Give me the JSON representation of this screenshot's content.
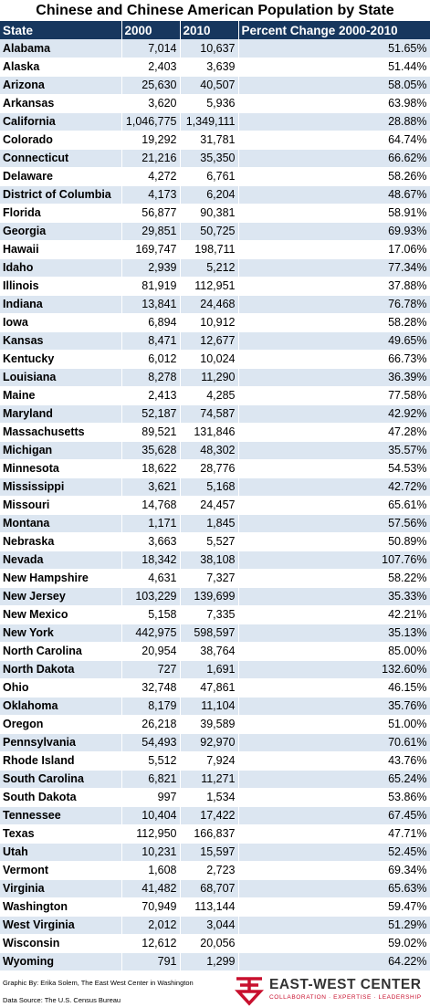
{
  "header": {
    "title": "Chinese and Chinese American Population by State"
  },
  "table": {
    "columns": [
      "State",
      "2000",
      "2010",
      "Percent Change 2000-2010"
    ],
    "rows": [
      [
        "Alabama",
        "7,014",
        "10,637",
        "51.65%"
      ],
      [
        "Alaska",
        "2,403",
        "3,639",
        "51.44%"
      ],
      [
        "Arizona",
        "25,630",
        "40,507",
        "58.05%"
      ],
      [
        "Arkansas",
        "3,620",
        "5,936",
        "63.98%"
      ],
      [
        "California",
        "1,046,775",
        "1,349,111",
        "28.88%"
      ],
      [
        "Colorado",
        "19,292",
        "31,781",
        "64.74%"
      ],
      [
        "Connecticut",
        "21,216",
        "35,350",
        "66.62%"
      ],
      [
        "Delaware",
        "4,272",
        "6,761",
        "58.26%"
      ],
      [
        "District of Columbia",
        "4,173",
        "6,204",
        "48.67%"
      ],
      [
        "Florida",
        "56,877",
        "90,381",
        "58.91%"
      ],
      [
        "Georgia",
        "29,851",
        "50,725",
        "69.93%"
      ],
      [
        "Hawaii",
        "169,747",
        "198,711",
        "17.06%"
      ],
      [
        "Idaho",
        "2,939",
        "5,212",
        "77.34%"
      ],
      [
        "Illinois",
        "81,919",
        "112,951",
        "37.88%"
      ],
      [
        "Indiana",
        "13,841",
        "24,468",
        "76.78%"
      ],
      [
        "Iowa",
        "6,894",
        "10,912",
        "58.28%"
      ],
      [
        "Kansas",
        "8,471",
        "12,677",
        "49.65%"
      ],
      [
        "Kentucky",
        "6,012",
        "10,024",
        "66.73%"
      ],
      [
        "Louisiana",
        "8,278",
        "11,290",
        "36.39%"
      ],
      [
        "Maine",
        "2,413",
        "4,285",
        "77.58%"
      ],
      [
        "Maryland",
        "52,187",
        "74,587",
        "42.92%"
      ],
      [
        "Massachusetts",
        "89,521",
        "131,846",
        "47.28%"
      ],
      [
        "Michigan",
        "35,628",
        "48,302",
        "35.57%"
      ],
      [
        "Minnesota",
        "18,622",
        "28,776",
        "54.53%"
      ],
      [
        "Mississippi",
        "3,621",
        "5,168",
        "42.72%"
      ],
      [
        "Missouri",
        "14,768",
        "24,457",
        "65.61%"
      ],
      [
        "Montana",
        "1,171",
        "1,845",
        "57.56%"
      ],
      [
        "Nebraska",
        "3,663",
        "5,527",
        "50.89%"
      ],
      [
        "Nevada",
        "18,342",
        "38,108",
        "107.76%"
      ],
      [
        "New Hampshire",
        "4,631",
        "7,327",
        "58.22%"
      ],
      [
        "New Jersey",
        "103,229",
        "139,699",
        "35.33%"
      ],
      [
        "New Mexico",
        "5,158",
        "7,335",
        "42.21%"
      ],
      [
        "New York",
        "442,975",
        "598,597",
        "35.13%"
      ],
      [
        "North Carolina",
        "20,954",
        "38,764",
        "85.00%"
      ],
      [
        "North Dakota",
        "727",
        "1,691",
        "132.60%"
      ],
      [
        "Ohio",
        "32,748",
        "47,861",
        "46.15%"
      ],
      [
        "Oklahoma",
        "8,179",
        "11,104",
        "35.76%"
      ],
      [
        "Oregon",
        "26,218",
        "39,589",
        "51.00%"
      ],
      [
        "Pennsylvania",
        "54,493",
        "92,970",
        "70.61%"
      ],
      [
        "Rhode Island",
        "5,512",
        "7,924",
        "43.76%"
      ],
      [
        "South Carolina",
        "6,821",
        "11,271",
        "65.24%"
      ],
      [
        "South Dakota",
        "997",
        "1,534",
        "53.86%"
      ],
      [
        "Tennessee",
        "10,404",
        "17,422",
        "67.45%"
      ],
      [
        "Texas",
        "112,950",
        "166,837",
        "47.71%"
      ],
      [
        "Utah",
        "10,231",
        "15,597",
        "52.45%"
      ],
      [
        "Vermont",
        "1,608",
        "2,723",
        "69.34%"
      ],
      [
        "Virginia",
        "41,482",
        "68,707",
        "65.63%"
      ],
      [
        "Washington",
        "70,949",
        "113,144",
        "59.47%"
      ],
      [
        "West Virginia",
        "2,012",
        "3,044",
        "51.29%"
      ],
      [
        "Wisconsin",
        "12,612",
        "20,056",
        "59.02%"
      ],
      [
        "Wyoming",
        "791",
        "1,299",
        "64.22%"
      ]
    ]
  },
  "footer": {
    "credit": "Graphic By: Erika Solem, The East West Center in Washington",
    "source": "Data Source: The U.S. Census Bureau",
    "logo": "EAST-WEST CENTER",
    "tagline": "COLLABORATION · EXPERTISE · LEADERSHIP"
  }
}
